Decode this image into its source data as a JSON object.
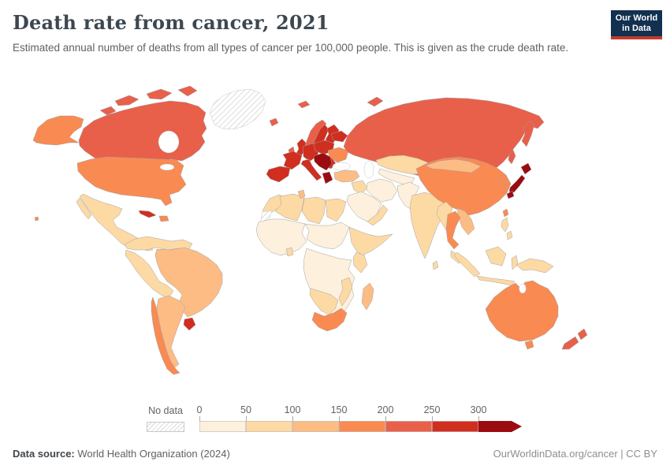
{
  "header": {
    "title": "Death rate from cancer, 2021",
    "subtitle": "Estimated annual number of deaths from all types of cancer per 100,000 people. This is given as the crude death rate.",
    "logo_line1": "Our World",
    "logo_line2": "in Data",
    "logo_bg": "#12304f",
    "logo_accent": "#c5392c"
  },
  "legend": {
    "no_data_label": "No data",
    "segments": [
      {
        "label": "0",
        "color": "#fdf0dc"
      },
      {
        "label": "50",
        "color": "#fdd9a4"
      },
      {
        "label": "100",
        "color": "#fcbc84"
      },
      {
        "label": "150",
        "color": "#f98a51"
      },
      {
        "label": "200",
        "color": "#e8604a"
      },
      {
        "label": "250",
        "color": "#d02e1f"
      },
      {
        "label": "300",
        "color": "#9a0c11",
        "arrow": true
      }
    ]
  },
  "footer": {
    "source_label": "Data source:",
    "source_value": "World Health Organization (2024)",
    "url": "OurWorldinData.org/cancer | CC BY"
  },
  "map": {
    "bin_colors": {
      "0-50": "#fdf0dc",
      "50-100": "#fdd9a4",
      "100-150": "#fcbc84",
      "150-200": "#f98a51",
      "200-250": "#e8604a",
      "250-300": "#d02e1f",
      "300+": "#9a0c11"
    },
    "regions": {
      "greenland": "no-data",
      "western-sahara": "no-data",
      "canada": "200-250",
      "united-states": "150-200",
      "mexico": "50-100",
      "central-america": "50-100",
      "cuba": "250-300",
      "hispaniola": "150-200",
      "northern-south-america": "50-100",
      "peru-bolivia": "50-100",
      "brazil": "100-150",
      "argentina": "100-150",
      "chile": "150-200",
      "uruguay": "250-300",
      "iceland": "200-250",
      "norway": "200-250",
      "sweden": "250-300",
      "finland": "250-300",
      "denmark": "250-300",
      "united-kingdom": "250-300",
      "ireland": "200-250",
      "france": "250-300",
      "iberia": "250-300",
      "germany-central-europe": "250-300",
      "italy": "250-300",
      "poland-czechia": "250-300",
      "baltics-belarus": "250-300",
      "romania-bulgaria": "250-300",
      "balkans": "300+",
      "greece": "300+",
      "ukraine": "150-200",
      "turkey": "100-150",
      "russia": "200-250",
      "kazakhstan": "50-100",
      "central-asia": "0-50",
      "iran": "0-50",
      "iraq-syria": "50-100",
      "arabia": "0-50",
      "yemen-oman": "50-100",
      "afghanistan-pakistan": "0-50",
      "india": "50-100",
      "sri-lanka": "50-100",
      "china": "150-200",
      "mongolia": "100-150",
      "korea": "150-200",
      "japan": "300+",
      "taiwan": "150-200",
      "myanmar": "50-100",
      "thailand": "150-200",
      "vietnam": "100-150",
      "malaysia": "50-100",
      "indonesia": "50-100",
      "philippines": "50-100",
      "new-guinea": "50-100",
      "australia": "150-200",
      "new-zealand": "200-250",
      "morocco": "50-100",
      "algeria": "50-100",
      "tunisia": "100-150",
      "libya": "50-100",
      "egypt": "50-100",
      "west-africa": "0-50",
      "ghana": "50-100",
      "sahel-sudan": "0-50",
      "horn-of-africa": "50-100",
      "kenya": "50-100",
      "central-africa": "0-50",
      "namibia-botswana": "50-100",
      "south-africa": "150-200",
      "mozambique": "50-100",
      "madagascar": "100-150"
    }
  },
  "chart_data": {
    "type": "choropleth_map",
    "title": "Death rate from cancer, 2021",
    "subtitle": "Estimated annual number of deaths from all types of cancer per 100,000 people. This is given as the crude death rate.",
    "year": 2021,
    "unit": "deaths per 100,000 people (crude rate)",
    "legend": {
      "ticks": [
        0,
        50,
        100,
        150,
        200,
        250,
        300
      ],
      "open_ended_top": true,
      "no_data_label": "No data",
      "position": "bottom"
    },
    "source": "World Health Organization (2024)",
    "countries": [
      {
        "name": "Canada",
        "bin": "200-250"
      },
      {
        "name": "United States",
        "bin": "150-200"
      },
      {
        "name": "Mexico",
        "bin": "50-100"
      },
      {
        "name": "Cuba",
        "bin": "250-300"
      },
      {
        "name": "Greenland",
        "bin": "No data"
      },
      {
        "name": "Colombia",
        "bin": "50-100"
      },
      {
        "name": "Venezuela",
        "bin": "50-100"
      },
      {
        "name": "Peru",
        "bin": "50-100"
      },
      {
        "name": "Bolivia",
        "bin": "50-100"
      },
      {
        "name": "Brazil",
        "bin": "100-150"
      },
      {
        "name": "Chile",
        "bin": "150-200"
      },
      {
        "name": "Argentina",
        "bin": "100-150"
      },
      {
        "name": "Uruguay",
        "bin": "250-300"
      },
      {
        "name": "Iceland",
        "bin": "200-250"
      },
      {
        "name": "United Kingdom",
        "bin": "250-300"
      },
      {
        "name": "Ireland",
        "bin": "200-250"
      },
      {
        "name": "Norway",
        "bin": "200-250"
      },
      {
        "name": "Sweden",
        "bin": "250-300"
      },
      {
        "name": "Finland",
        "bin": "250-300"
      },
      {
        "name": "Denmark",
        "bin": "250-300"
      },
      {
        "name": "France",
        "bin": "250-300"
      },
      {
        "name": "Spain",
        "bin": "250-300"
      },
      {
        "name": "Portugal",
        "bin": "250-300"
      },
      {
        "name": "Germany",
        "bin": "250-300"
      },
      {
        "name": "Italy",
        "bin": "250-300"
      },
      {
        "name": "Poland",
        "bin": "250-300"
      },
      {
        "name": "Hungary",
        "bin": "300+"
      },
      {
        "name": "Croatia",
        "bin": "300+"
      },
      {
        "name": "Serbia",
        "bin": "300+"
      },
      {
        "name": "Greece",
        "bin": "300+"
      },
      {
        "name": "Romania",
        "bin": "250-300"
      },
      {
        "name": "Ukraine",
        "bin": "150-200"
      },
      {
        "name": "Russia",
        "bin": "200-250"
      },
      {
        "name": "Turkey",
        "bin": "100-150"
      },
      {
        "name": "Kazakhstan",
        "bin": "50-100"
      },
      {
        "name": "Uzbekistan",
        "bin": "0-50"
      },
      {
        "name": "Iran",
        "bin": "0-50"
      },
      {
        "name": "Iraq",
        "bin": "50-100"
      },
      {
        "name": "Saudi Arabia",
        "bin": "0-50"
      },
      {
        "name": "Morocco",
        "bin": "50-100"
      },
      {
        "name": "Algeria",
        "bin": "50-100"
      },
      {
        "name": "Libya",
        "bin": "50-100"
      },
      {
        "name": "Egypt",
        "bin": "50-100"
      },
      {
        "name": "Western Sahara",
        "bin": "No data"
      },
      {
        "name": "Nigeria",
        "bin": "0-50"
      },
      {
        "name": "Ethiopia",
        "bin": "0-50"
      },
      {
        "name": "Kenya",
        "bin": "50-100"
      },
      {
        "name": "South Africa",
        "bin": "150-200"
      },
      {
        "name": "Madagascar",
        "bin": "100-150"
      },
      {
        "name": "Pakistan",
        "bin": "0-50"
      },
      {
        "name": "India",
        "bin": "50-100"
      },
      {
        "name": "China",
        "bin": "150-200"
      },
      {
        "name": "Mongolia",
        "bin": "100-150"
      },
      {
        "name": "South Korea",
        "bin": "150-200"
      },
      {
        "name": "Japan",
        "bin": "300+"
      },
      {
        "name": "Myanmar",
        "bin": "50-100"
      },
      {
        "name": "Thailand",
        "bin": "150-200"
      },
      {
        "name": "Vietnam",
        "bin": "100-150"
      },
      {
        "name": "Indonesia",
        "bin": "50-100"
      },
      {
        "name": "Philippines",
        "bin": "50-100"
      },
      {
        "name": "Papua New Guinea",
        "bin": "50-100"
      },
      {
        "name": "Australia",
        "bin": "150-200"
      },
      {
        "name": "New Zealand",
        "bin": "200-250"
      }
    ]
  }
}
